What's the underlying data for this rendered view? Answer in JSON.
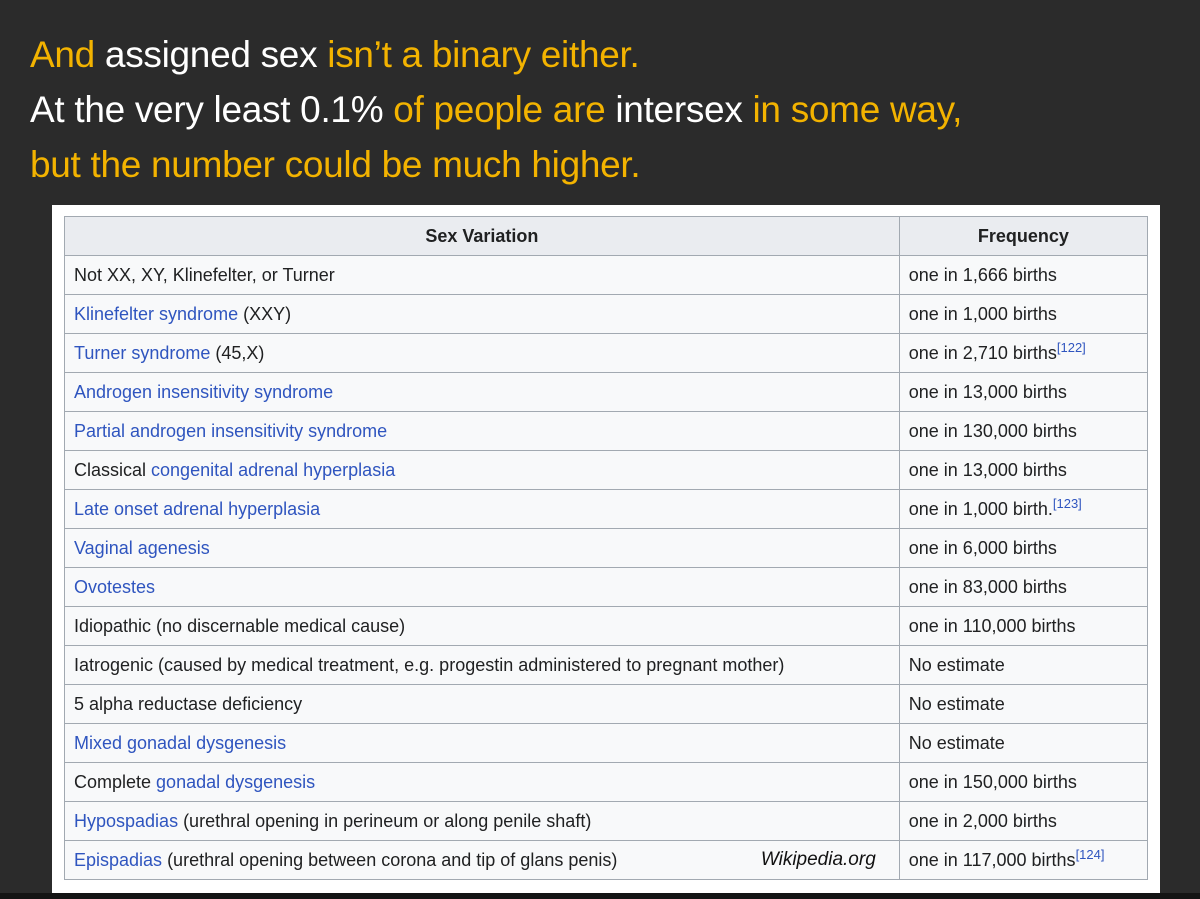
{
  "slide": {
    "background": "#2b2b2b",
    "accent_gold": "#F3B300",
    "text_white": "#FFFFFF",
    "title_lines": [
      {
        "segments": [
          {
            "text": "And ",
            "gold": true
          },
          {
            "text": "assigned sex ",
            "gold": false
          },
          {
            "text": "isn’t a binary either.",
            "gold": true
          }
        ]
      },
      {
        "segments": [
          {
            "text": "At the very least 0.1% ",
            "gold": false
          },
          {
            "text": "of people are ",
            "gold": true
          },
          {
            "text": "intersex ",
            "gold": false
          },
          {
            "text": "in some way,",
            "gold": true
          }
        ]
      },
      {
        "segments": [
          {
            "text": "but the number could be much higher.",
            "gold": true
          }
        ]
      }
    ]
  },
  "table": {
    "link_color": "#2f55bf",
    "header_bg": "#eaecf0",
    "row_bg": "#f8f9fa",
    "border_color": "#a2a9b1",
    "headers": [
      "Sex Variation",
      "Frequency"
    ],
    "rows": [
      {
        "variation": [
          {
            "text": "Not XX, XY, Klinefelter, or Turner"
          }
        ],
        "frequency": "one in 1,666 births"
      },
      {
        "variation": [
          {
            "text": "Klinefelter syndrome",
            "link": true
          },
          {
            "text": " (XXY)"
          }
        ],
        "frequency": "one in 1,000 births"
      },
      {
        "variation": [
          {
            "text": "Turner syndrome",
            "link": true
          },
          {
            "text": " (45,X)"
          }
        ],
        "frequency": "one in 2,710 births",
        "ref": "[122]"
      },
      {
        "variation": [
          {
            "text": "Androgen insensitivity syndrome",
            "link": true
          }
        ],
        "frequency": "one in 13,000 births"
      },
      {
        "variation": [
          {
            "text": "Partial androgen insensitivity syndrome",
            "link": true
          }
        ],
        "frequency": "one in 130,000 births"
      },
      {
        "variation": [
          {
            "text": "Classical "
          },
          {
            "text": "congenital adrenal hyperplasia",
            "link": true
          }
        ],
        "frequency": "one in 13,000 births"
      },
      {
        "variation": [
          {
            "text": "Late onset adrenal hyperplasia",
            "link": true
          }
        ],
        "frequency": "one in 1,000 birth.",
        "ref": "[123]"
      },
      {
        "variation": [
          {
            "text": "Vaginal agenesis",
            "link": true
          }
        ],
        "frequency": "one in 6,000 births"
      },
      {
        "variation": [
          {
            "text": "Ovotestes",
            "link": true
          }
        ],
        "frequency": "one in 83,000 births"
      },
      {
        "variation": [
          {
            "text": "Idiopathic (no discernable medical cause)"
          }
        ],
        "frequency": "one in 110,000 births"
      },
      {
        "variation": [
          {
            "text": "Iatrogenic (caused by medical treatment, e.g. progestin administered to pregnant mother)"
          }
        ],
        "frequency": "No estimate"
      },
      {
        "variation": [
          {
            "text": "5 alpha reductase deficiency"
          }
        ],
        "frequency": "No estimate"
      },
      {
        "variation": [
          {
            "text": "Mixed gonadal dysgenesis",
            "link": true
          }
        ],
        "frequency": "No estimate"
      },
      {
        "variation": [
          {
            "text": "Complete "
          },
          {
            "text": "gonadal dysgenesis",
            "link": true
          }
        ],
        "frequency": "one in 150,000 births"
      },
      {
        "variation": [
          {
            "text": "Hypospadias",
            "link": true
          },
          {
            "text": " (urethral opening in perineum or along penile shaft)"
          }
        ],
        "frequency": "one in 2,000 births"
      },
      {
        "variation": [
          {
            "text": "Epispadias",
            "link": true
          },
          {
            "text": " (urethral opening between corona and tip of glans penis)"
          }
        ],
        "frequency": "one in 117,000 births",
        "ref": "[124]",
        "note": "Wikipedia.org"
      }
    ]
  }
}
